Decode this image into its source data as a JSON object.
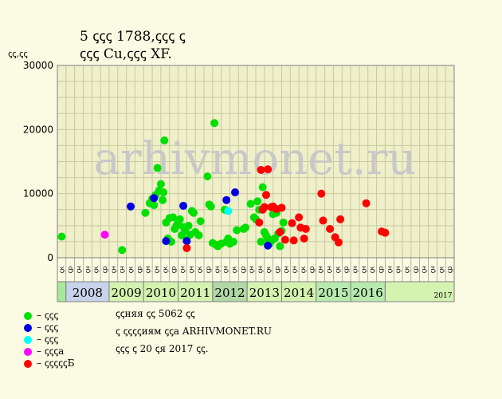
{
  "title_line1": "5 ꞔꞔꞔ 1788,ꞔꞔꞔ ꞔ",
  "title_line2": "ꞔꞔꞔ Cu,ꞔꞔꞔ XF.",
  "y_unit": "ꞔꞔ,ꞔꞔ",
  "watermark": "arhivmonet.ru",
  "notes": [
    "ꞔꞔняя ꞔꞔ 5062 ꞔꞔ",
    "ꞔ ꞔꞔꞔꞔиям ꞔꞔа ARHIVMONET.RU",
    "ꞔꞔꞔ ꞔ 20 ꞔя 2017 ꞔꞔ."
  ],
  "legend": [
    {
      "label": "– ꞔꞔꞔ",
      "color": "#00e000"
    },
    {
      "label": "– ꞔꞔꞔ",
      "color": "#0000e0"
    },
    {
      "label": "– ꞔꞔꞔ",
      "color": "#00ffff"
    },
    {
      "label": "– ꞔꞔꞔа",
      "color": "#ff00ff"
    },
    {
      "label": "– ꞔꞔꞔꞔꞔБ",
      "color": "#ff0000"
    }
  ],
  "chart_data": {
    "type": "scatter",
    "ylim": [
      0,
      30000
    ],
    "y_ticks": [
      0,
      10000,
      20000,
      30000
    ],
    "grid": true,
    "x_slots": 46,
    "half_year_labels": [
      "ꞔк",
      "ꞔр",
      "ꞔн",
      "ꞔн",
      "ꞔк",
      "ꞔр",
      "ꞔн",
      "ꞔн",
      "ꞔк",
      "ꞔр",
      "ꞔн",
      "ꞔн",
      "ꞔк",
      "ꞔр",
      "ꞔн",
      "ꞔн",
      "ꞔк",
      "ꞔр",
      "ꞔн",
      "ꞔн",
      "ꞔк",
      "ꞔр",
      "ꞔн",
      "ꞔн",
      "ꞔк",
      "ꞔр",
      "ꞔн",
      "ꞔн",
      "ꞔк",
      "ꞔр",
      "ꞔн",
      "ꞔн",
      "ꞔк",
      "ꞔр",
      "ꞔн",
      "ꞔн",
      "ꞔк",
      "ꞔр",
      "ꞔн",
      "ꞔн",
      "ꞔк",
      "ꞔр",
      "ꞔн",
      "ꞔн",
      "ꞔк",
      "ꞔр"
    ],
    "years": [
      {
        "label": "",
        "start": 0,
        "end": 1,
        "color": "#a8e89a"
      },
      {
        "label": "2008",
        "start": 1,
        "end": 6,
        "color": "#c8d2ea"
      },
      {
        "label": "2009",
        "start": 6,
        "end": 10,
        "color": "#d4f2b0"
      },
      {
        "label": "2010",
        "start": 10,
        "end": 14,
        "color": "#d4f2b0"
      },
      {
        "label": "2011",
        "start": 14,
        "end": 18,
        "color": "#d4f2b0"
      },
      {
        "label": "2012",
        "start": 18,
        "end": 22,
        "color": "#b2d8a8"
      },
      {
        "label": "2013",
        "start": 22,
        "end": 26,
        "color": "#d4f2b0"
      },
      {
        "label": "2014",
        "start": 26,
        "end": 30,
        "color": "#d4f2b0"
      },
      {
        "label": "2015",
        "start": 30,
        "end": 34,
        "color": "#b8eab0"
      },
      {
        "label": "2016",
        "start": 34,
        "end": 38,
        "color": "#b8eab0"
      },
      {
        "label": "2017",
        "start": 38,
        "end": 46,
        "color": "#d4f2b0"
      }
    ],
    "series": [
      {
        "color": "#00e000",
        "points": [
          [
            0.5,
            3300
          ],
          [
            7.5,
            1200
          ],
          [
            10.2,
            7000
          ],
          [
            10.7,
            8500
          ],
          [
            11.0,
            9200
          ],
          [
            11.2,
            8200
          ],
          [
            11.4,
            9800
          ],
          [
            11.6,
            14000
          ],
          [
            11.8,
            10500
          ],
          [
            12.0,
            11500
          ],
          [
            12.2,
            9000
          ],
          [
            12.3,
            10200
          ],
          [
            12.4,
            18300
          ],
          [
            12.6,
            5500
          ],
          [
            12.8,
            3000
          ],
          [
            13.0,
            6200
          ],
          [
            13.2,
            2500
          ],
          [
            13.4,
            6300
          ],
          [
            13.6,
            4500
          ],
          [
            13.8,
            5000
          ],
          [
            14.0,
            5600
          ],
          [
            14.2,
            6000
          ],
          [
            14.4,
            3500
          ],
          [
            14.6,
            4800
          ],
          [
            14.8,
            4200
          ],
          [
            15.0,
            2800
          ],
          [
            15.2,
            5000
          ],
          [
            15.4,
            3600
          ],
          [
            15.6,
            7300
          ],
          [
            15.8,
            7000
          ],
          [
            16.0,
            4000
          ],
          [
            16.4,
            3500
          ],
          [
            16.6,
            5700
          ],
          [
            17.4,
            12700
          ],
          [
            17.6,
            8300
          ],
          [
            17.8,
            8000
          ],
          [
            18.0,
            2300
          ],
          [
            18.2,
            21000
          ],
          [
            18.4,
            2000
          ],
          [
            18.6,
            1800
          ],
          [
            19.0,
            2200
          ],
          [
            19.4,
            7500
          ],
          [
            19.6,
            2500
          ],
          [
            19.8,
            3000
          ],
          [
            20.0,
            2200
          ],
          [
            20.4,
            2500
          ],
          [
            20.8,
            4300
          ],
          [
            21.6,
            4500
          ],
          [
            21.8,
            4700
          ],
          [
            22.4,
            8400
          ],
          [
            22.8,
            6300
          ],
          [
            23.0,
            6000
          ],
          [
            23.2,
            8800
          ],
          [
            23.4,
            7500
          ],
          [
            23.6,
            2500
          ],
          [
            23.8,
            11000
          ],
          [
            24.0,
            4000
          ],
          [
            24.2,
            3500
          ],
          [
            24.4,
            3000
          ],
          [
            24.6,
            2200
          ],
          [
            24.8,
            2600
          ],
          [
            25.0,
            6800
          ],
          [
            25.2,
            3000
          ],
          [
            25.4,
            7000
          ],
          [
            25.6,
            3800
          ],
          [
            25.8,
            1800
          ],
          [
            26.0,
            4200
          ],
          [
            26.2,
            5500
          ]
        ]
      },
      {
        "color": "#0000e0",
        "points": [
          [
            8.5,
            8000
          ],
          [
            11.2,
            9300
          ],
          [
            12.6,
            2600
          ],
          [
            14.6,
            8100
          ],
          [
            15.0,
            2600
          ],
          [
            19.6,
            9000
          ],
          [
            20.6,
            10200
          ],
          [
            24.4,
            1900
          ]
        ]
      },
      {
        "color": "#00ffff",
        "points": [
          [
            19.8,
            7300
          ]
        ]
      },
      {
        "color": "#ff00ff",
        "points": [
          [
            5.5,
            3600
          ]
        ]
      },
      {
        "color": "#ff0000",
        "points": [
          [
            15.0,
            1500
          ],
          [
            23.4,
            5500
          ],
          [
            23.6,
            13700
          ],
          [
            23.8,
            7500
          ],
          [
            24.0,
            7900
          ],
          [
            24.2,
            9800
          ],
          [
            24.4,
            13800
          ],
          [
            24.8,
            7900
          ],
          [
            25.0,
            8000
          ],
          [
            25.4,
            7600
          ],
          [
            25.8,
            4000
          ],
          [
            26.0,
            7800
          ],
          [
            26.4,
            2800
          ],
          [
            27.2,
            5400
          ],
          [
            27.4,
            2700
          ],
          [
            28.0,
            6300
          ],
          [
            28.2,
            4700
          ],
          [
            28.6,
            3000
          ],
          [
            28.8,
            4500
          ],
          [
            30.6,
            10000
          ],
          [
            30.8,
            5800
          ],
          [
            31.6,
            4500
          ],
          [
            32.2,
            3200
          ],
          [
            32.6,
            2400
          ],
          [
            32.8,
            6000
          ],
          [
            35.8,
            8500
          ],
          [
            37.6,
            4100
          ],
          [
            38.0,
            3900
          ]
        ]
      }
    ]
  }
}
